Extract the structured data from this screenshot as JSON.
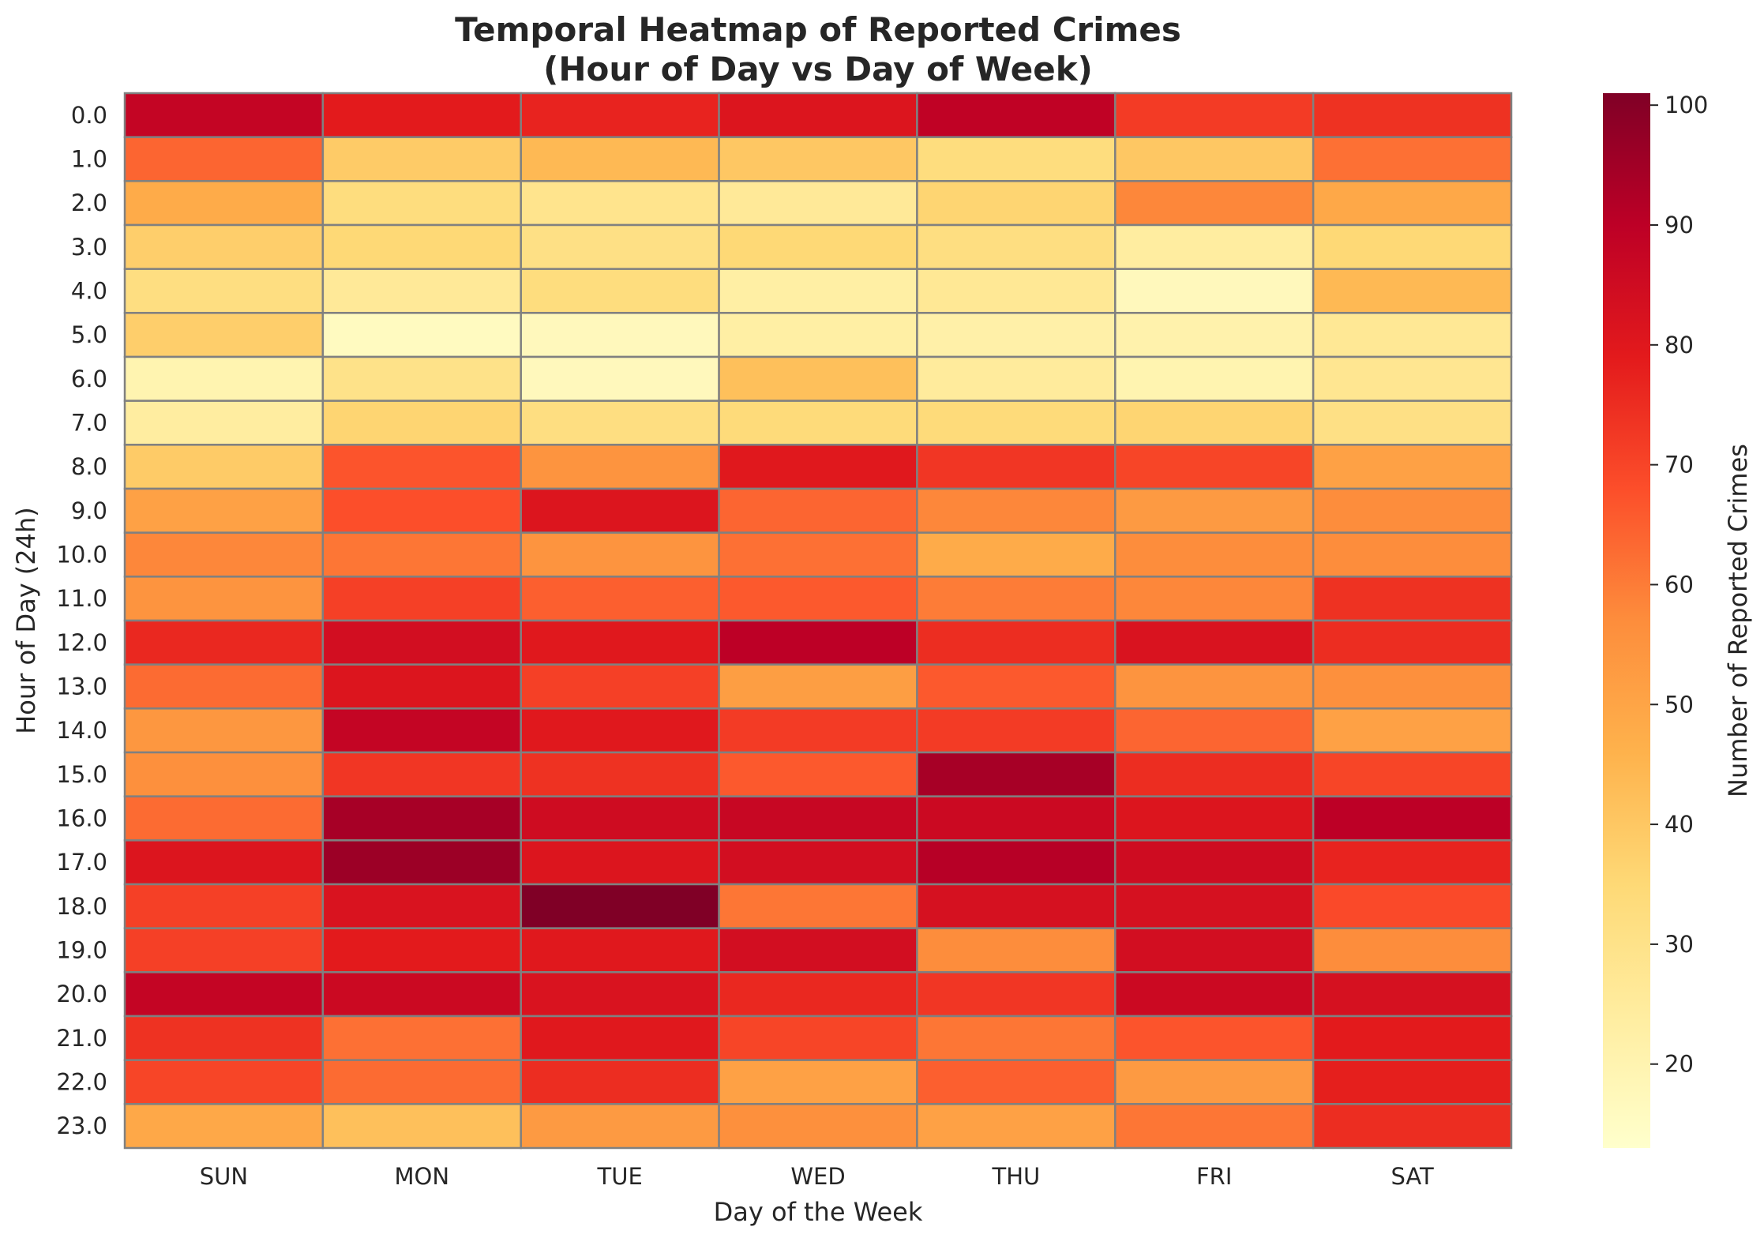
{
  "chart_data": {
    "type": "heatmap",
    "title": [
      "Temporal Heatmap of Reported Crimes",
      "(Hour of Day vs Day of Week)"
    ],
    "xlabel": "Day of the Week",
    "ylabel": "Hour of Day (24h)",
    "x_categories": [
      "SUN",
      "MON",
      "TUE",
      "WED",
      "THU",
      "FRI",
      "SAT"
    ],
    "y_categories": [
      "0.0",
      "1.0",
      "2.0",
      "3.0",
      "4.0",
      "5.0",
      "6.0",
      "7.0",
      "8.0",
      "9.0",
      "10.0",
      "11.0",
      "12.0",
      "13.0",
      "14.0",
      "15.0",
      "16.0",
      "17.0",
      "18.0",
      "19.0",
      "20.0",
      "21.0",
      "22.0",
      "23.0"
    ],
    "values": [
      [
        88,
        79,
        77,
        81,
        89,
        72,
        74
      ],
      [
        64,
        39,
        44,
        40,
        33,
        40,
        62
      ],
      [
        48,
        33,
        29,
        26,
        36,
        58,
        49
      ],
      [
        38,
        35,
        31,
        35,
        32,
        24,
        35
      ],
      [
        32,
        26,
        33,
        23,
        27,
        17,
        44
      ],
      [
        38,
        16,
        17,
        23,
        22,
        21,
        27
      ],
      [
        20,
        30,
        17,
        42,
        25,
        20,
        28
      ],
      [
        24,
        36,
        32,
        34,
        34,
        36,
        31
      ],
      [
        39,
        67,
        55,
        80,
        73,
        70,
        51
      ],
      [
        51,
        68,
        81,
        64,
        58,
        53,
        57
      ],
      [
        58,
        61,
        55,
        62,
        48,
        57,
        57
      ],
      [
        55,
        71,
        65,
        66,
        60,
        58,
        74
      ],
      [
        76,
        84,
        80,
        90,
        75,
        82,
        75
      ],
      [
        63,
        81,
        71,
        52,
        66,
        55,
        56
      ],
      [
        54,
        88,
        80,
        72,
        72,
        64,
        51
      ],
      [
        56,
        73,
        74,
        66,
        94,
        75,
        70
      ],
      [
        63,
        94,
        85,
        87,
        86,
        81,
        90
      ],
      [
        81,
        96,
        81,
        84,
        91,
        85,
        77
      ],
      [
        71,
        82,
        101,
        61,
        83,
        83,
        69
      ],
      [
        71,
        79,
        80,
        84,
        57,
        84,
        57
      ],
      [
        88,
        86,
        82,
        76,
        73,
        86,
        83
      ],
      [
        74,
        62,
        80,
        70,
        61,
        67,
        79
      ],
      [
        70,
        63,
        75,
        51,
        65,
        53,
        78
      ],
      [
        49,
        42,
        53,
        56,
        51,
        61,
        75
      ]
    ],
    "colorbar": {
      "label": "Number of Reported Crimes",
      "min": 13,
      "max": 101,
      "ticks": [
        20,
        30,
        40,
        50,
        60,
        70,
        80,
        90,
        100
      ],
      "colormap": "YlOrRd",
      "colors": [
        "#ffffcc",
        "#ffeda0",
        "#fed976",
        "#feb24c",
        "#fd8d3c",
        "#fc4e2a",
        "#e31a1c",
        "#bd0026",
        "#800026"
      ]
    },
    "cell_border_color": "#808080",
    "grid": false
  }
}
